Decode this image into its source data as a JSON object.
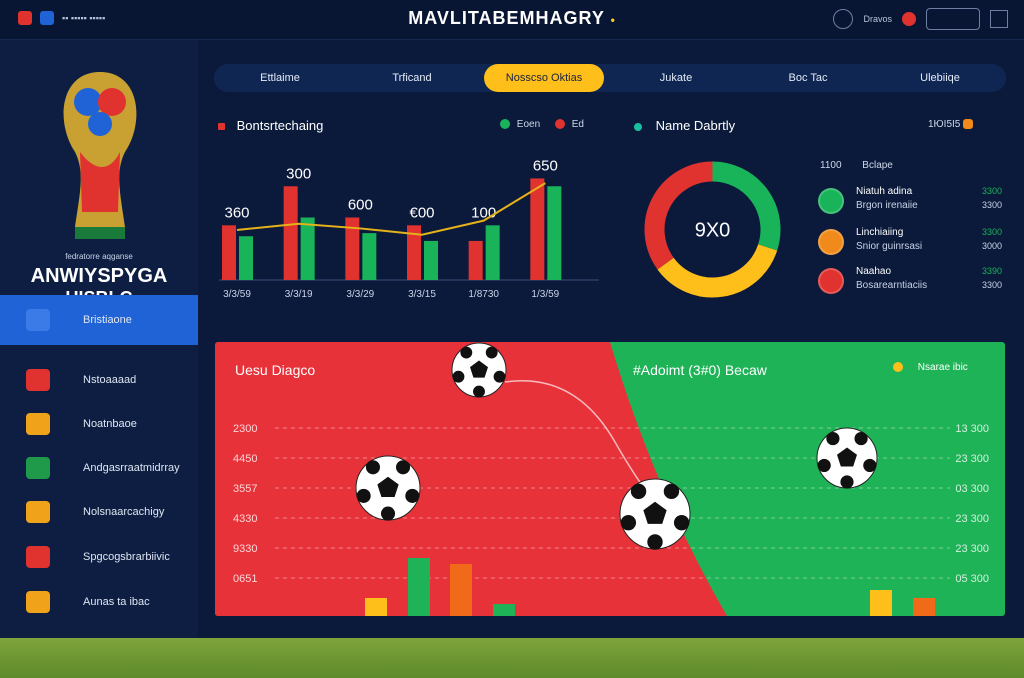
{
  "topbar": {
    "left_text": "▪▪ ▪▪▪▪▪ ▪▪▪▪▪",
    "title": "MAVLITABEMHAGRY",
    "user_label": "Dravos"
  },
  "sidebar": {
    "brand_small": "fedratorre aqganse",
    "brand_line1": "ANWIYSPYGA",
    "brand_line2": "UISBLC",
    "items": [
      {
        "label": "Bristiaone",
        "icon": "dashboard-icon",
        "active": true,
        "color": "#3a7be8"
      },
      {
        "label": "Nstoaaaad",
        "icon": "flag-icon",
        "active": false,
        "color": "#e0322f"
      },
      {
        "label": "Noatnbaoe",
        "icon": "trophy-icon",
        "active": false,
        "color": "#f0a21a"
      },
      {
        "label": "Andgasrraatmidrray",
        "icon": "team-icon",
        "active": false,
        "color": "#1f9a4a"
      },
      {
        "label": "Nolsnaarcachigy",
        "icon": "calendar-icon",
        "active": false,
        "color": "#f0a21a"
      },
      {
        "label": "Spgcogsbrarbiivic",
        "icon": "stats-icon",
        "active": false,
        "color": "#e0322f"
      },
      {
        "label": "Aunas ta ibac",
        "icon": "ball-icon",
        "active": false,
        "color": "#f0a21a"
      }
    ]
  },
  "tabs": [
    {
      "label": "Ettlaime",
      "active": false
    },
    {
      "label": "Trficand",
      "active": false
    },
    {
      "label": "Nosscso Oktias",
      "active": true
    },
    {
      "label": "Jukate",
      "active": false
    },
    {
      "label": "Boc Tac",
      "active": false
    },
    {
      "label": "Ulebiiqe",
      "active": false
    }
  ],
  "bar_panel": {
    "title": "Bontsrtechaing",
    "legend": [
      {
        "label": "Eoen",
        "color": "#19b35a"
      },
      {
        "label": "Ed",
        "color": "#e0322f"
      }
    ],
    "colors": {
      "red": "#e0322f",
      "green": "#19b35a",
      "line": "#e6b21a"
    }
  },
  "chart_data": [
    {
      "type": "bar",
      "categories": [
        "3/3/59",
        "3/3/19",
        "3/3/29",
        "3/3/15",
        "1/8730",
        "1/3/59"
      ],
      "series": [
        {
          "values": [
            350,
            600,
            400,
            350,
            250,
            650
          ]
        },
        {
          "values": [
            280,
            400,
            300,
            250,
            350,
            600
          ]
        }
      ],
      "data_labels": [
        "360",
        "300",
        "600",
        "€00",
        "100",
        "650"
      ],
      "line_values": [
        320,
        360,
        330,
        290,
        380,
        620
      ],
      "ylim": [
        0,
        800
      ]
    },
    {
      "type": "pie",
      "center_label": "9X0",
      "slices": [
        {
          "value": 30,
          "color": "#19b35a"
        },
        {
          "value": 35,
          "color": "#ffbf1a"
        },
        {
          "value": 35,
          "color": "#e0322f"
        }
      ]
    }
  ],
  "donut_panel": {
    "title": "Name Dabrtly",
    "header_left": "1100",
    "header_right": "Bclape",
    "top_right": "1ЮI5I5",
    "rows": [
      {
        "title": "Niatuh adina",
        "sub": "Brgon irenaiie",
        "v1": "3300",
        "v2": "3300",
        "color": "#19b35a"
      },
      {
        "title": "Linchiaiing",
        "sub": "Snior guinrsasi",
        "v1": "3300",
        "v2": "3000",
        "color": "#f08a1a"
      },
      {
        "title": "Naahao",
        "sub": "Bosarearntiaciis",
        "v1": "3390",
        "v2": "3300",
        "color": "#e0322f"
      }
    ]
  },
  "bottom_panel": {
    "left_title": "Uesu Diagco",
    "right_title": "#Adoimt (3#0) Becaw",
    "right_legend": "Nsarae ibic",
    "left_axis": [
      "2300",
      "4450",
      "3557",
      "4330",
      "9330",
      "0651"
    ],
    "right_axis": [
      "13 300",
      "23 300",
      "03 300",
      "23 300",
      "23 300",
      "05 300"
    ],
    "colors": {
      "red": "#e8323a",
      "green": "#1fb357"
    }
  }
}
